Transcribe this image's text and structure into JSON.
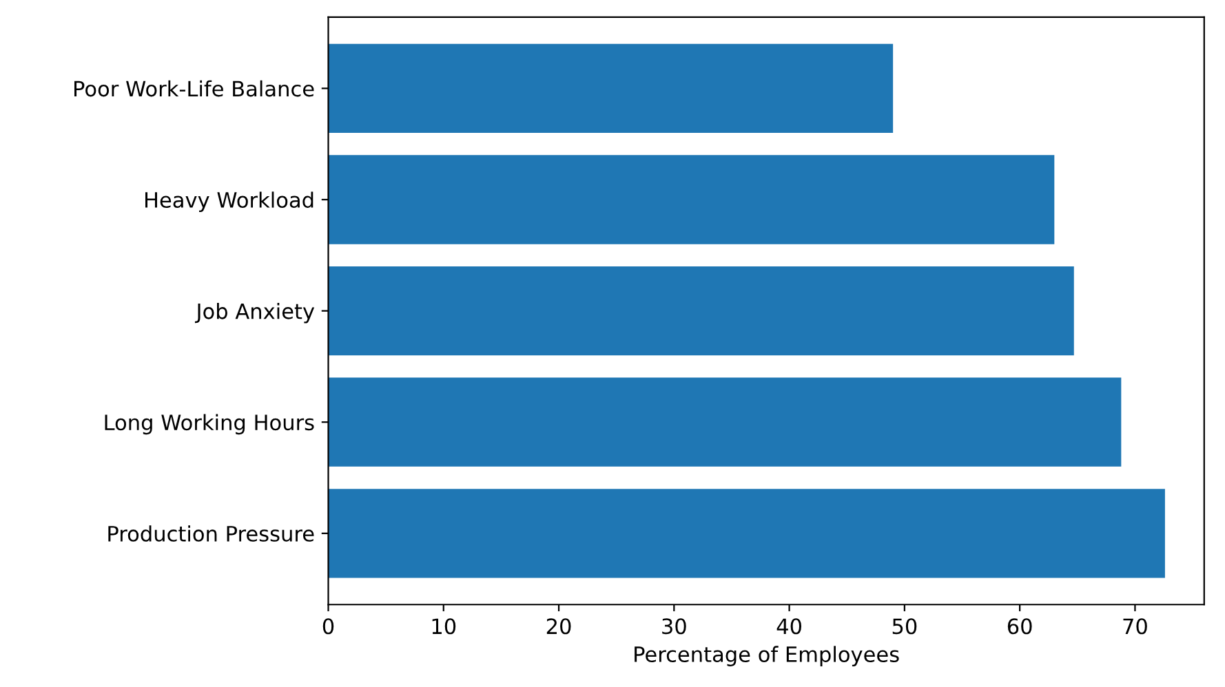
{
  "chart_data": {
    "type": "bar",
    "orientation": "horizontal",
    "xlabel": "Percentage of Employees",
    "categories": [
      "Poor Work-Life Balance",
      "Heavy Workload",
      "Job Anxiety",
      "Long Working Hours",
      "Production Pressure"
    ],
    "values": [
      49,
      63,
      64.7,
      68.8,
      72.6
    ],
    "color": "#1f77b4",
    "xlim": [
      0,
      76
    ],
    "xticks": [
      0,
      10,
      20,
      30,
      40,
      50,
      60,
      70
    ],
    "grid": false
  }
}
